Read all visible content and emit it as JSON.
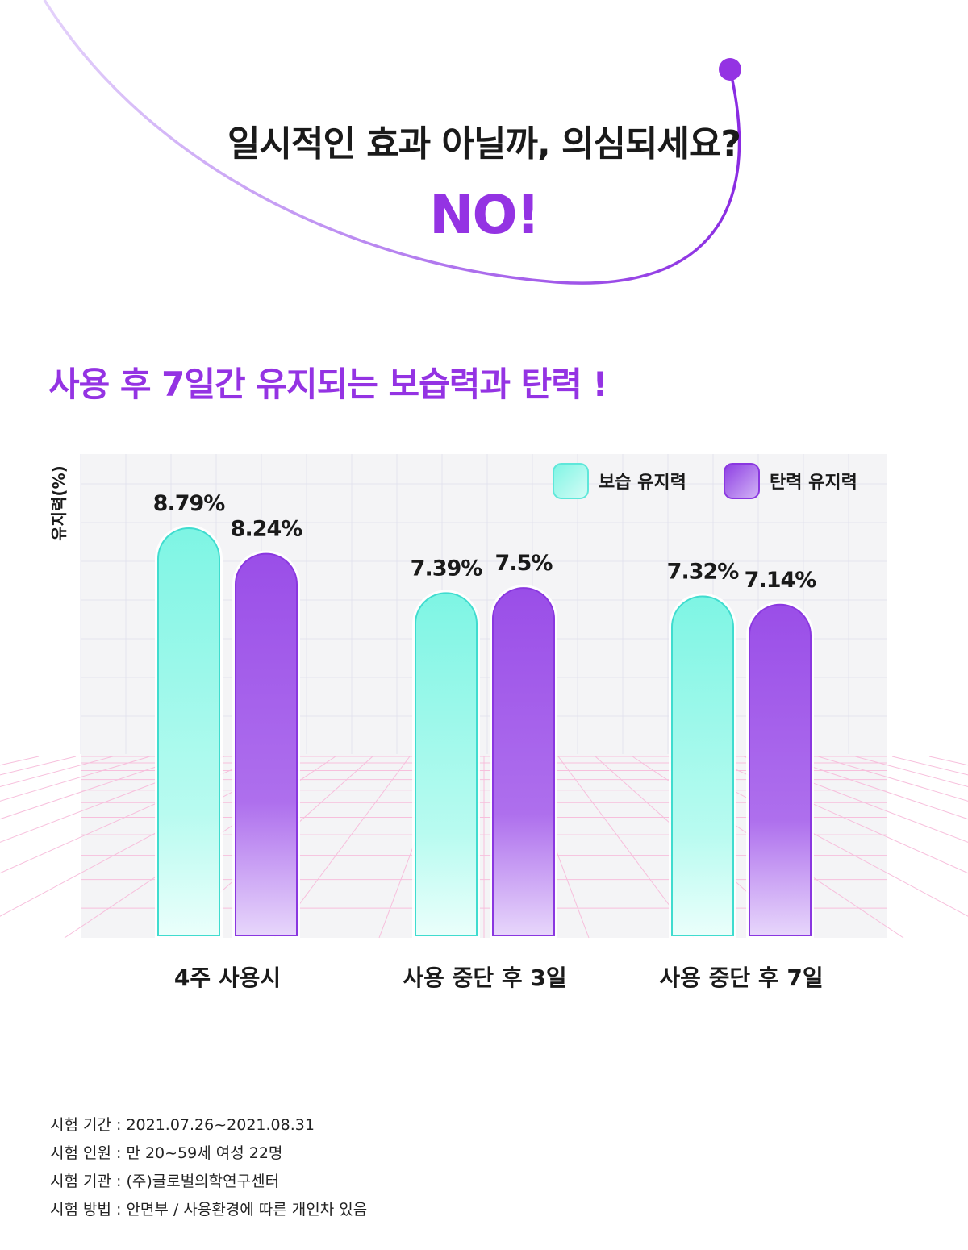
{
  "header": {
    "question": "일시적인 효과 아닐까, 의심되세요?",
    "answer": "NO!"
  },
  "subtitle": "사용 후 7일간 유지되는 보습력과 탄력 !",
  "colors": {
    "accent": "#9433e3",
    "moisture": "#7ef5e4",
    "elasticity": "#9a4ee8"
  },
  "chart_data": {
    "type": "bar",
    "ylabel": "유지력(%)",
    "categories": [
      "4주 사용시",
      "사용 중단 후 3일",
      "사용 중단 후 7일"
    ],
    "series": [
      {
        "name": "보습 유지력",
        "values": [
          8.79,
          7.39,
          7.32
        ],
        "labels": [
          "8.79%",
          "7.39%",
          "7.32%"
        ]
      },
      {
        "name": "탄력 유지력",
        "values": [
          8.24,
          7.5,
          7.14
        ],
        "labels": [
          "8.24%",
          "7.5%",
          "7.14%"
        ]
      }
    ],
    "legend_position": "top-right"
  },
  "notes": [
    "시험 기간 : 2021.07.26~2021.08.31",
    "시험 인원 : 만 20~59세 여성 22명",
    "시험 기관 : (주)글로벌의학연구센터",
    "시험 방법 : 안면부 / 사용환경에 따른 개인차 있음"
  ]
}
